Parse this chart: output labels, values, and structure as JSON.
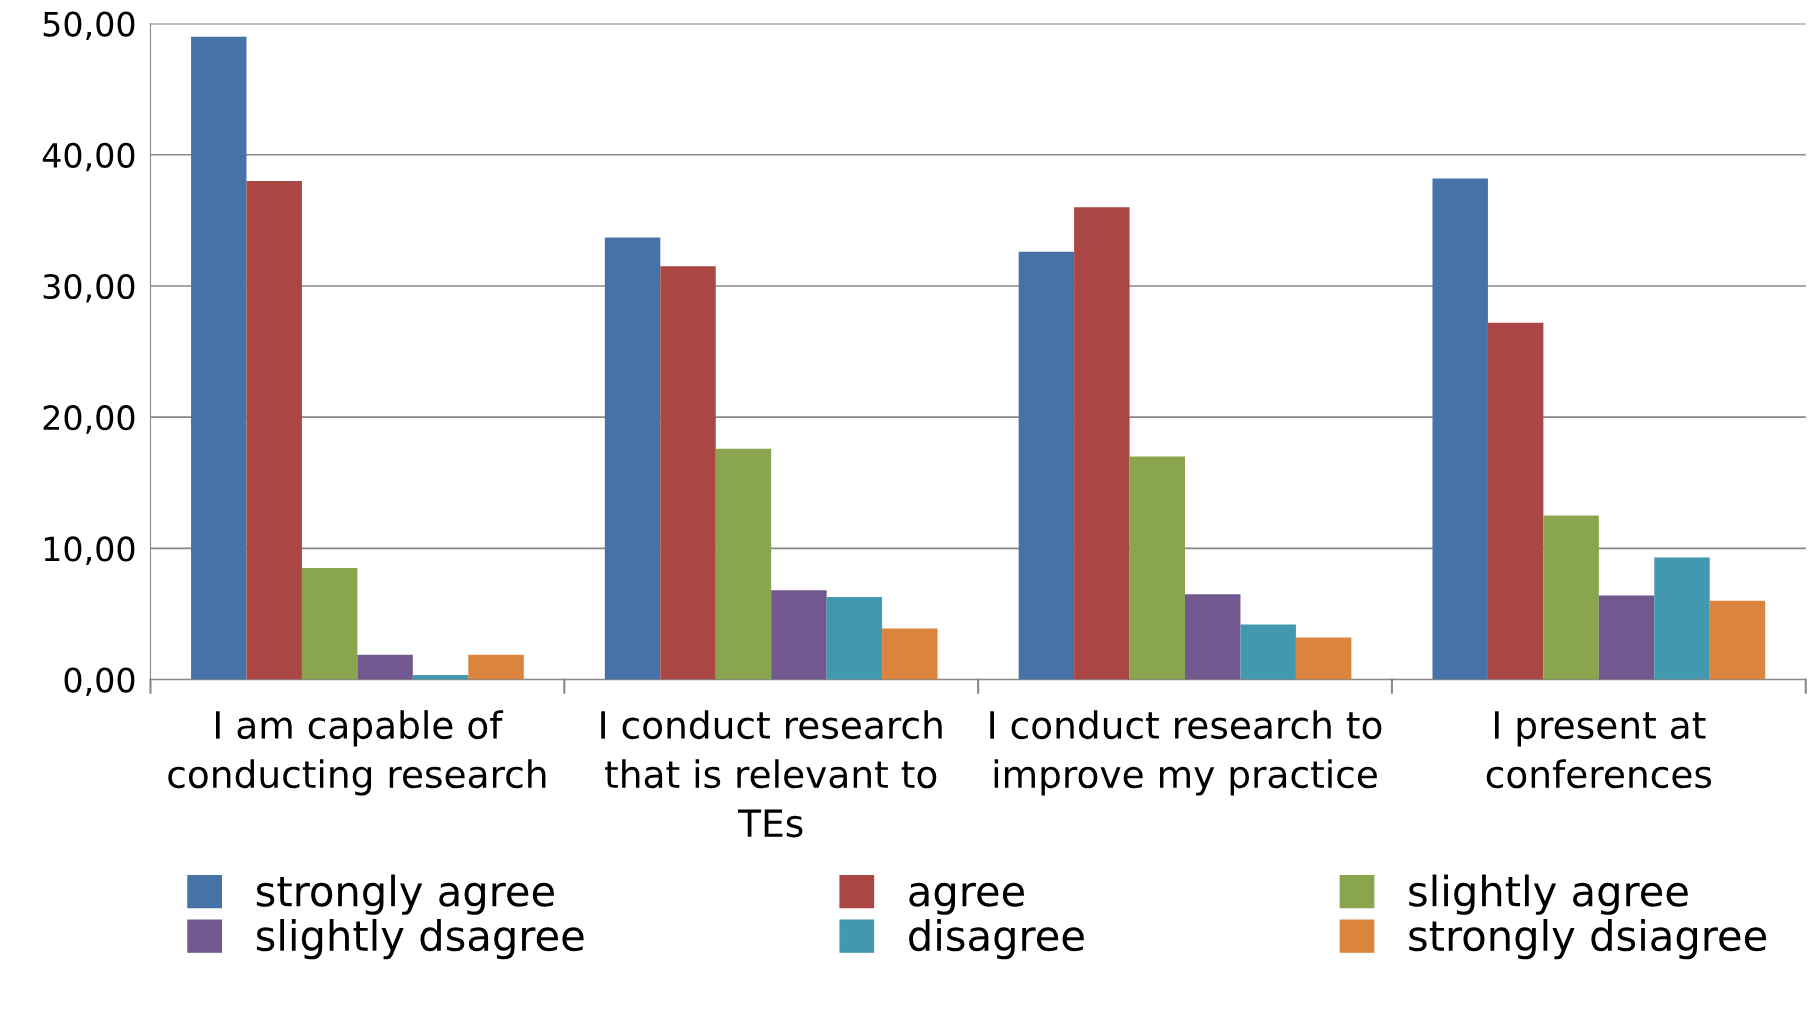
{
  "chart_data": {
    "type": "bar",
    "categories": [
      "I am capable of\nconducting research",
      "I conduct research\nthat is relevant to\nTEs",
      "I conduct research to\nimprove my practice",
      "I present at\nconferences"
    ],
    "series": [
      {
        "name": "strongly agree",
        "color": "#4572a7",
        "values": [
          49.0,
          33.7,
          32.6,
          38.2
        ]
      },
      {
        "name": "agree",
        "color": "#aa4643",
        "values": [
          38.0,
          31.5,
          36.0,
          27.2
        ]
      },
      {
        "name": "slightly agree",
        "color": "#89a54e",
        "values": [
          8.5,
          17.6,
          17.0,
          12.5
        ]
      },
      {
        "name": "slightly dsagree",
        "color": "#71588f",
        "values": [
          1.9,
          6.8,
          6.5,
          6.4
        ]
      },
      {
        "name": "disagree",
        "color": "#4198af",
        "values": [
          0.35,
          6.3,
          4.2,
          9.3
        ]
      },
      {
        "name": "strongly dsiagree",
        "color": "#db843d",
        "values": [
          1.9,
          3.9,
          3.2,
          6.0
        ]
      }
    ],
    "ylim": [
      0,
      50
    ],
    "yticks": [
      {
        "value": 0,
        "label": "0,00"
      },
      {
        "value": 10,
        "label": "10,00"
      },
      {
        "value": 20,
        "label": "20,00"
      },
      {
        "value": 30,
        "label": "30,00"
      },
      {
        "value": 40,
        "label": "40,00"
      },
      {
        "value": 50,
        "label": "50,00"
      }
    ],
    "grid": "y",
    "legend": "bottom"
  }
}
